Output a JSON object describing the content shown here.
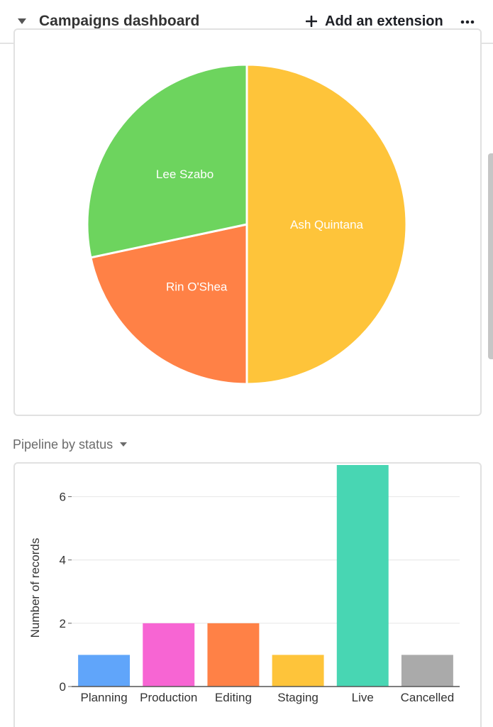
{
  "header": {
    "title": "Campaigns dashboard",
    "add_extension_label": "Add an extension"
  },
  "pipeline_section": {
    "label": "Pipeline by status"
  },
  "colors": {
    "ash": "#FEC43A",
    "lee": "#6DD45E",
    "rin": "#FF8146",
    "planning": "#60A5FA",
    "production": "#F765D3",
    "editing": "#FF8146",
    "staging": "#FEC43A",
    "live": "#48D6B3",
    "cancelled": "#AAAAAA"
  },
  "chart_data": [
    {
      "type": "pie",
      "labels": [
        "Ash Quintana",
        "Rin O'Shea",
        "Lee Szabo"
      ],
      "values": [
        6,
        2.6,
        3.4
      ],
      "colors": [
        "#FEC43A",
        "#FF8146",
        "#6DD45E"
      ]
    },
    {
      "type": "bar",
      "categories": [
        "Planning",
        "Production",
        "Editing",
        "Staging",
        "Live",
        "Cancelled"
      ],
      "values": [
        1,
        2,
        2,
        1,
        7,
        1
      ],
      "colors": [
        "#60A5FA",
        "#F765D3",
        "#FF8146",
        "#FEC43A",
        "#48D6B3",
        "#AAAAAA"
      ],
      "ylabel": "Number of records",
      "yticks": [
        0,
        2,
        4,
        6
      ],
      "ylim": [
        0,
        7
      ]
    }
  ]
}
